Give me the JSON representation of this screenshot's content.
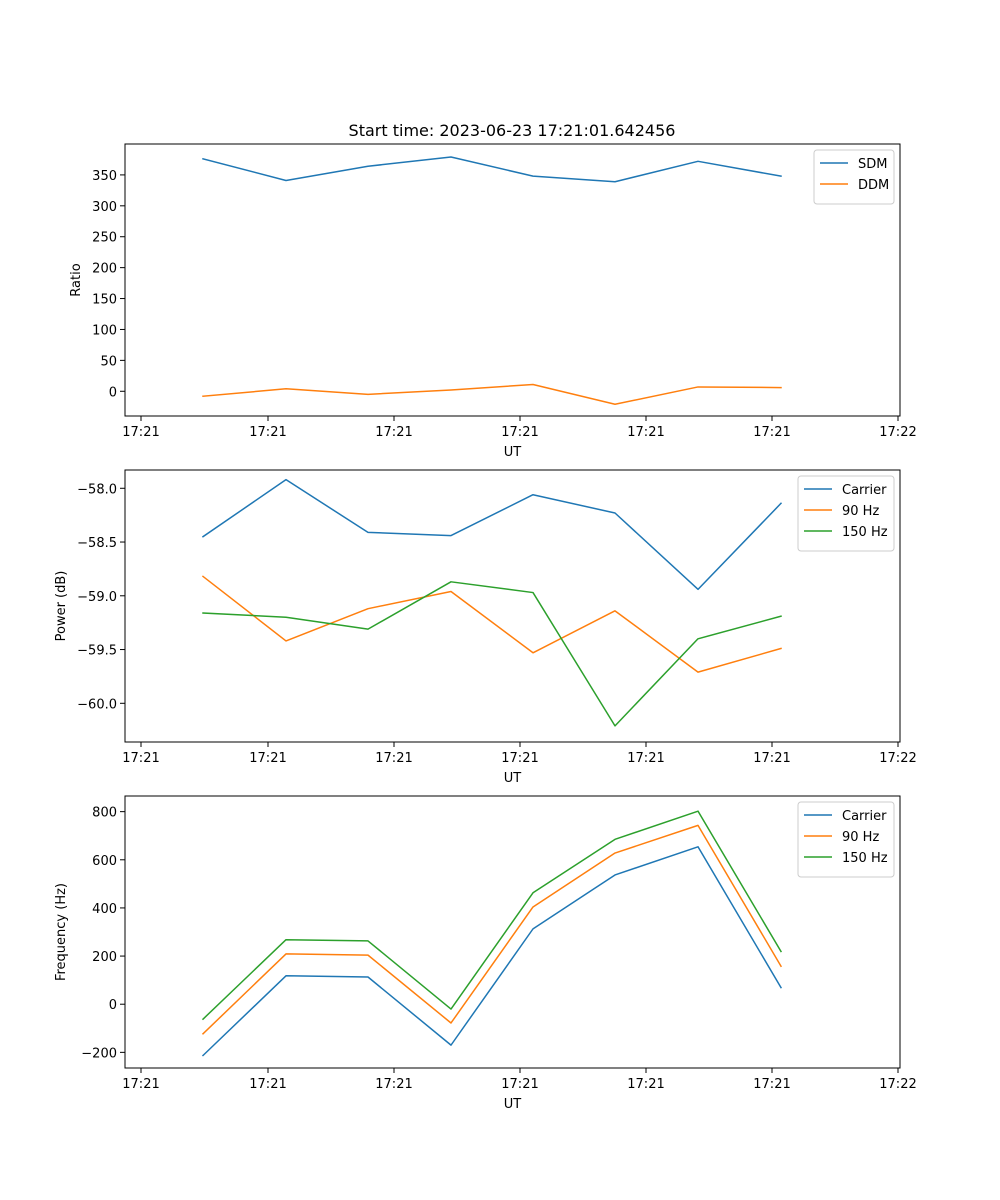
{
  "title": "Start time: 2023-06-23 17:21:01.642456",
  "colors": {
    "blue": "#1f77b4",
    "orange": "#ff7f0e",
    "green": "#2ca02c"
  },
  "chart_data": [
    {
      "type": "line",
      "ylabel": "Ratio",
      "xlabel": "UT",
      "x_ticks": [
        "17:21",
        "17:21",
        "17:21",
        "17:21",
        "17:21",
        "17:21",
        "17:22"
      ],
      "y_ticks": [
        "0",
        "50",
        "100",
        "150",
        "200",
        "250",
        "300",
        "350"
      ],
      "y_tick_values": [
        0,
        50,
        100,
        150,
        200,
        250,
        300,
        350
      ],
      "ylim": [
        -40,
        400
      ],
      "grid": false,
      "legend": "top-right",
      "series": [
        {
          "name": "SDM",
          "color": "#1f77b4",
          "values": [
            376,
            341,
            364,
            379,
            348,
            339,
            372,
            348
          ]
        },
        {
          "name": "DDM",
          "color": "#ff7f0e",
          "values": [
            -8,
            4,
            -5,
            2,
            11,
            -21,
            7,
            6
          ]
        }
      ]
    },
    {
      "type": "line",
      "ylabel": "Power (dB)",
      "xlabel": "UT",
      "x_ticks": [
        "17:21",
        "17:21",
        "17:21",
        "17:21",
        "17:21",
        "17:21",
        "17:22"
      ],
      "y_ticks": [
        "−60.0",
        "−59.5",
        "−59.0",
        "−58.5",
        "−58.0"
      ],
      "y_tick_values": [
        -60.0,
        -59.5,
        -59.0,
        -58.5,
        -58.0
      ],
      "ylim": [
        -60.36,
        -57.83
      ],
      "grid": false,
      "legend": "top-right",
      "series": [
        {
          "name": "Carrier",
          "color": "#1f77b4",
          "values": [
            -58.45,
            -57.92,
            -58.41,
            -58.44,
            -58.06,
            -58.23,
            -58.94,
            -58.14
          ]
        },
        {
          "name": "90 Hz",
          "color": "#ff7f0e",
          "values": [
            -58.82,
            -59.42,
            -59.12,
            -58.96,
            -59.53,
            -59.14,
            -59.71,
            -59.49
          ]
        },
        {
          "name": "150 Hz",
          "color": "#2ca02c",
          "values": [
            -59.16,
            -59.2,
            -59.31,
            -58.87,
            -58.97,
            -60.21,
            -59.4,
            -59.19
          ]
        }
      ]
    },
    {
      "type": "line",
      "ylabel": "Frequency (Hz)",
      "xlabel": "UT",
      "x_ticks": [
        "17:21",
        "17:21",
        "17:21",
        "17:21",
        "17:21",
        "17:21",
        "17:22"
      ],
      "y_ticks": [
        "−200",
        "0",
        "200",
        "400",
        "600",
        "800"
      ],
      "y_tick_values": [
        -200,
        0,
        200,
        400,
        600,
        800
      ],
      "ylim": [
        -265,
        865
      ],
      "grid": false,
      "legend": "top-right",
      "series": [
        {
          "name": "Carrier",
          "color": "#1f77b4",
          "values": [
            -213,
            118,
            113,
            -170,
            313,
            537,
            654,
            69
          ]
        },
        {
          "name": "90 Hz",
          "color": "#ff7f0e",
          "values": [
            -123,
            209,
            204,
            -78,
            404,
            628,
            743,
            158
          ]
        },
        {
          "name": "150 Hz",
          "color": "#2ca02c",
          "values": [
            -62,
            268,
            263,
            -20,
            463,
            685,
            802,
            219
          ]
        }
      ]
    }
  ]
}
